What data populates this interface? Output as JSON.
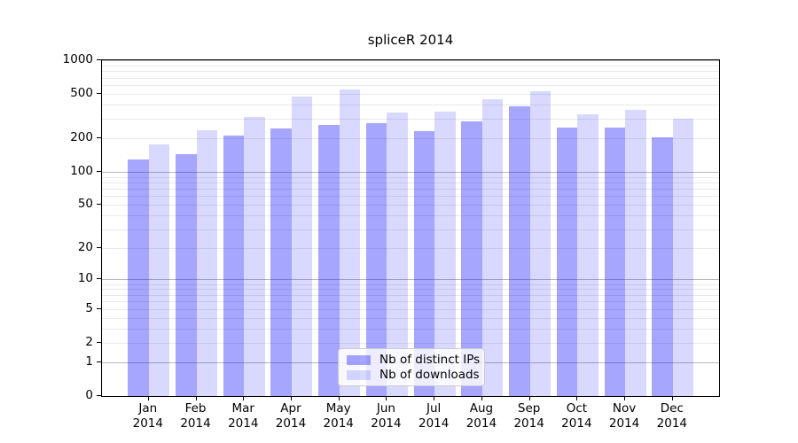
{
  "title": "spliceR 2014",
  "chart_data": {
    "type": "bar",
    "title": "spliceR 2014",
    "y_scale": "log10(value+1)",
    "ylim": [
      0,
      1000
    ],
    "yticks": [
      0,
      1,
      2,
      5,
      10,
      20,
      50,
      100,
      200,
      500,
      1000
    ],
    "grid": true,
    "legend_position": "lower center",
    "categories": [
      "Jan",
      "Feb",
      "Mar",
      "Apr",
      "May",
      "Jun",
      "Jul",
      "Aug",
      "Sep",
      "Oct",
      "Nov",
      "Dec"
    ],
    "x_year": "2014",
    "series": [
      {
        "name": "Nb of distinct IPs",
        "color": "rgba(0,0,255,0.35)",
        "values": [
          130,
          145,
          210,
          245,
          265,
          275,
          230,
          285,
          390,
          250,
          250,
          205
        ]
      },
      {
        "name": "Nb of downloads",
        "color": "rgba(0,0,255,0.15)",
        "values": [
          175,
          235,
          310,
          470,
          545,
          340,
          345,
          450,
          530,
          330,
          360,
          300
        ]
      }
    ]
  },
  "colors": {
    "bar_distinct_ips": "#a8a8fa",
    "bar_downloads": "#dcdcfa",
    "grid_major": "#b8b8b8",
    "grid_minor": "#e9e9e9",
    "axis": "#000000",
    "legend_border": "#cccccc"
  }
}
